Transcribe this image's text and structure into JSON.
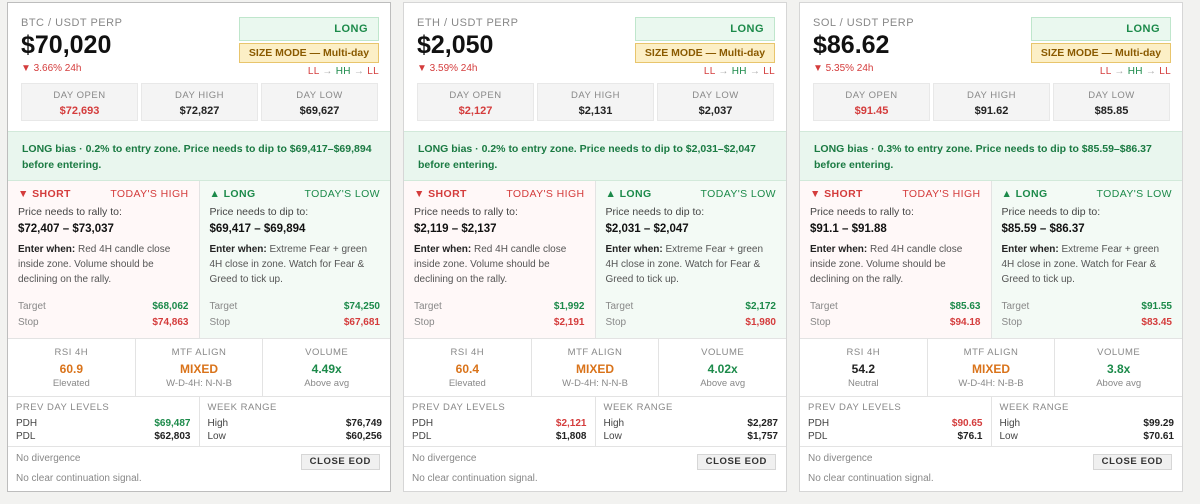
{
  "cards": [
    {
      "pair": "BTC / USDT PERP",
      "price": "$70,020",
      "change": "▼ 3.66% 24h",
      "direction": "LONG",
      "size_mode": "SIZE MODE — Multi-day",
      "structure": [
        "LL",
        "HH",
        "LL"
      ],
      "day_open_label": "DAY OPEN",
      "day_open": "$72,693",
      "day_high_label": "DAY HIGH",
      "day_high": "$72,827",
      "day_low_label": "DAY LOW",
      "day_low": "$69,627",
      "bias": "LONG bias · 0.2% to entry zone. Price needs to dip to $69,417–$69,894 before entering.",
      "short": {
        "title": "▼ SHORT",
        "tag": "TODAY'S HIGH",
        "need": "Price needs to rally to:",
        "range": "$72,407 – $73,037",
        "enter_label": "Enter when:",
        "enter_text": "Red 4H candle close inside zone. Volume should be declining on the rally.",
        "target_label": "Target",
        "target": "$68,062",
        "stop_label": "Stop",
        "stop": "$74,863"
      },
      "long": {
        "title": "▲ LONG",
        "tag": "TODAY'S LOW",
        "need": "Price needs to dip to:",
        "range": "$69,417 – $69,894",
        "enter_label": "Enter when:",
        "enter_text": "Extreme Fear + green 4H close in zone. Watch for Fear & Greed to tick up.",
        "target_label": "Target",
        "target": "$74,250",
        "stop_label": "Stop",
        "stop": "$67,681"
      },
      "rsi_label": "RSI 4H",
      "rsi": "60.9",
      "rsi_sub": "Elevated",
      "rsi_color": "#d9731a",
      "mtf_label": "MTF ALIGN",
      "mtf": "MIXED",
      "mtf_sub": "W-D-4H: N-N-B",
      "vol_label": "VOLUME",
      "vol": "4.49x",
      "vol_sub": "Above avg",
      "prev_label": "PREV DAY LEVELS",
      "pdh_label": "PDH",
      "pdh": "$69,487",
      "pdh_color": "#1c8a4a",
      "pdl_label": "PDL",
      "pdl": "$62,803",
      "week_label": "WEEK RANGE",
      "high_label": "High",
      "week_high": "$76,749",
      "low_label": "Low",
      "week_low": "$60,256",
      "divergence": "No divergence",
      "close_btn": "CLOSE EOD",
      "continuation": "No clear continuation signal."
    },
    {
      "pair": "ETH / USDT PERP",
      "price": "$2,050",
      "change": "▼ 3.59% 24h",
      "direction": "LONG",
      "size_mode": "SIZE MODE — Multi-day",
      "structure": [
        "LL",
        "HH",
        "LL"
      ],
      "day_open_label": "DAY OPEN",
      "day_open": "$2,127",
      "day_high_label": "DAY HIGH",
      "day_high": "$2,131",
      "day_low_label": "DAY LOW",
      "day_low": "$2,037",
      "bias": "LONG bias · 0.2% to entry zone. Price needs to dip to $2,031–$2,047 before entering.",
      "short": {
        "title": "▼ SHORT",
        "tag": "TODAY'S HIGH",
        "need": "Price needs to rally to:",
        "range": "$2,119 – $2,137",
        "enter_label": "Enter when:",
        "enter_text": "Red 4H candle close inside zone. Volume should be declining on the rally.",
        "target_label": "Target",
        "target": "$1,992",
        "stop_label": "Stop",
        "stop": "$2,191"
      },
      "long": {
        "title": "▲ LONG",
        "tag": "TODAY'S LOW",
        "need": "Price needs to dip to:",
        "range": "$2,031 – $2,047",
        "enter_label": "Enter when:",
        "enter_text": "Extreme Fear + green 4H close in zone. Watch for Fear & Greed to tick up.",
        "target_label": "Target",
        "target": "$2,172",
        "stop_label": "Stop",
        "stop": "$1,980"
      },
      "rsi_label": "RSI 4H",
      "rsi": "60.4",
      "rsi_sub": "Elevated",
      "rsi_color": "#d9731a",
      "mtf_label": "MTF ALIGN",
      "mtf": "MIXED",
      "mtf_sub": "W-D-4H: N-N-B",
      "vol_label": "VOLUME",
      "vol": "4.02x",
      "vol_sub": "Above avg",
      "prev_label": "PREV DAY LEVELS",
      "pdh_label": "PDH",
      "pdh": "$2,121",
      "pdh_color": "#d43c3c",
      "pdl_label": "PDL",
      "pdl": "$1,808",
      "week_label": "WEEK RANGE",
      "high_label": "High",
      "week_high": "$2,287",
      "low_label": "Low",
      "week_low": "$1,757",
      "divergence": "No divergence",
      "close_btn": "CLOSE EOD",
      "continuation": "No clear continuation signal."
    },
    {
      "pair": "SOL / USDT PERP",
      "price": "$86.62",
      "change": "▼ 5.35% 24h",
      "direction": "LONG",
      "size_mode": "SIZE MODE — Multi-day",
      "structure": [
        "LL",
        "HH",
        "LL"
      ],
      "day_open_label": "DAY OPEN",
      "day_open": "$91.45",
      "day_high_label": "DAY HIGH",
      "day_high": "$91.62",
      "day_low_label": "DAY LOW",
      "day_low": "$85.85",
      "bias": "LONG bias · 0.3% to entry zone. Price needs to dip to $85.59–$86.37 before entering.",
      "short": {
        "title": "▼ SHORT",
        "tag": "TODAY'S HIGH",
        "need": "Price needs to rally to:",
        "range": "$91.1 – $91.88",
        "enter_label": "Enter when:",
        "enter_text": "Red 4H candle close inside zone. Volume should be declining on the rally.",
        "target_label": "Target",
        "target": "$85.63",
        "stop_label": "Stop",
        "stop": "$94.18"
      },
      "long": {
        "title": "▲ LONG",
        "tag": "TODAY'S LOW",
        "need": "Price needs to dip to:",
        "range": "$85.59 – $86.37",
        "enter_label": "Enter when:",
        "enter_text": "Extreme Fear + green 4H close in zone. Watch for Fear & Greed to tick up.",
        "target_label": "Target",
        "target": "$91.55",
        "stop_label": "Stop",
        "stop": "$83.45"
      },
      "rsi_label": "RSI 4H",
      "rsi": "54.2",
      "rsi_sub": "Neutral",
      "rsi_color": "#222222",
      "mtf_label": "MTF ALIGN",
      "mtf": "MIXED",
      "mtf_sub": "W-D-4H: N-B-B",
      "vol_label": "VOLUME",
      "vol": "3.8x",
      "vol_sub": "Above avg",
      "prev_label": "PREV DAY LEVELS",
      "pdh_label": "PDH",
      "pdh": "$90.65",
      "pdh_color": "#d43c3c",
      "pdl_label": "PDL",
      "pdl": "$76.1",
      "week_label": "WEEK RANGE",
      "high_label": "High",
      "week_high": "$99.29",
      "low_label": "Low",
      "week_low": "$70.61",
      "divergence": "No divergence",
      "close_btn": "CLOSE EOD",
      "continuation": "No clear continuation signal."
    }
  ]
}
